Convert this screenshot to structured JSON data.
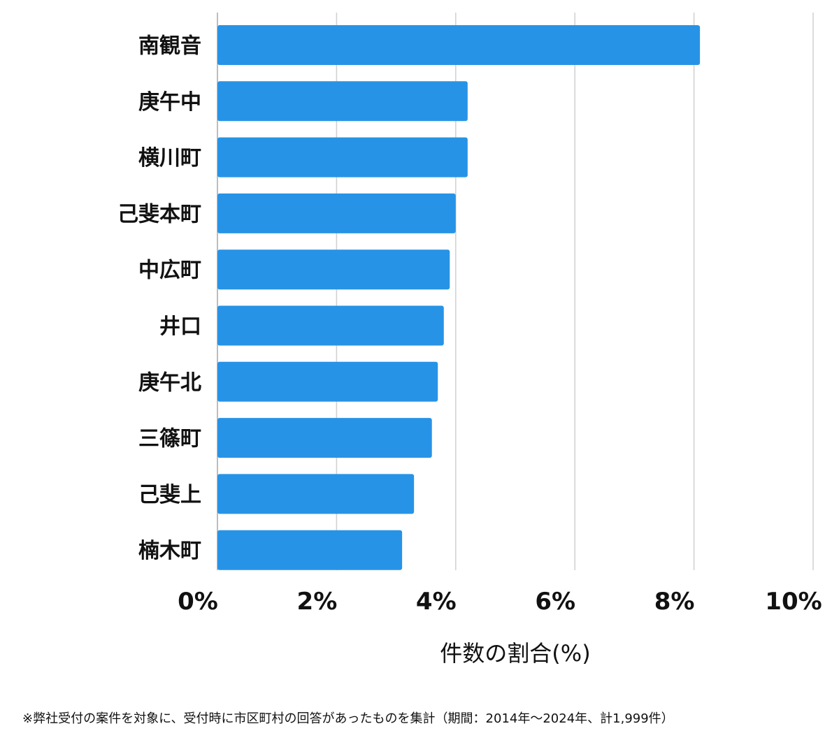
{
  "chart_data": {
    "type": "bar",
    "orientation": "horizontal",
    "categories": [
      "南観音",
      "庚午中",
      "横川町",
      "己斐本町",
      "中広町",
      "井口",
      "庚午北",
      "三篠町",
      "己斐上",
      "楠木町"
    ],
    "values": [
      8.1,
      4.2,
      4.2,
      4.0,
      3.9,
      3.8,
      3.7,
      3.6,
      3.3,
      3.1
    ],
    "xlim": [
      0,
      10
    ],
    "xticks": [
      0,
      2,
      4,
      6,
      8,
      10
    ],
    "tick_labels": [
      "0%",
      "2%",
      "4%",
      "6%",
      "8%",
      "10%"
    ],
    "xlabel": "件数の割合(%)",
    "ylabel": "",
    "grid": "vertical",
    "bar_color": "#2793e6",
    "grid_color": "#d0d0d0"
  },
  "footnote": "※弊社受付の案件を対象に、受付時に市区町村の回答があったものを集計（期間：2014年～2024年、計1,999件）"
}
